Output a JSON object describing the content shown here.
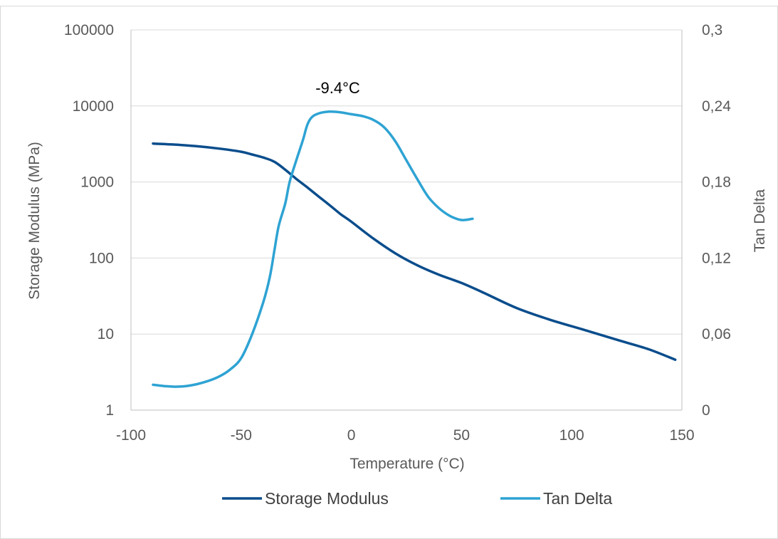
{
  "chart_data": {
    "type": "line",
    "x_axis": {
      "title": "Temperature  (°C)",
      "range": [
        -100,
        150
      ],
      "ticks": [
        -100,
        -50,
        0,
        50,
        100,
        150
      ],
      "tick_labels": [
        "-100",
        "-50",
        "0",
        "50",
        "100",
        "150"
      ]
    },
    "y_axis_left": {
      "title": "Storage  Modulus (MPa)",
      "scale": "log",
      "range": [
        1,
        100000
      ],
      "ticks": [
        1,
        10,
        100,
        1000,
        10000,
        100000
      ],
      "tick_labels": [
        "1",
        "10",
        "100",
        "1000",
        "10000",
        "100000"
      ]
    },
    "y_axis_right": {
      "title": "Tan Delta",
      "scale": "linear",
      "range": [
        0,
        0.3
      ],
      "ticks": [
        0,
        0.06,
        0.12,
        0.18,
        0.24,
        0.3
      ],
      "tick_labels": [
        "0",
        "0,06",
        "0,12",
        "0,18",
        "0,24",
        "0,3"
      ]
    },
    "grid": "horizontal",
    "legend_position": "bottom",
    "annotations": [
      {
        "text": "-9.4°C",
        "x": -9.4,
        "axis": "right",
        "y": 0.25
      }
    ],
    "series": [
      {
        "name": "Storage Modulus",
        "axis": "left",
        "color": "#0a4d8c",
        "x": [
          -90,
          -80,
          -70,
          -60,
          -50,
          -45,
          -40,
          -35,
          -30,
          -25,
          -20,
          -15,
          -10,
          -5,
          0,
          10,
          20,
          30,
          40,
          50,
          60,
          75,
          90,
          105,
          120,
          135,
          147
        ],
        "y": [
          3200,
          3100,
          2950,
          2750,
          2500,
          2300,
          2100,
          1850,
          1450,
          1100,
          850,
          650,
          500,
          380,
          300,
          180,
          115,
          80,
          60,
          47,
          35,
          22,
          15.5,
          11.5,
          8.5,
          6.3,
          4.6
        ]
      },
      {
        "name": "Tan Delta",
        "axis": "right",
        "color": "#2ea3d3",
        "x": [
          -90,
          -85,
          -80,
          -75,
          -70,
          -65,
          -60,
          -55,
          -50,
          -45,
          -40,
          -37,
          -35,
          -33,
          -30,
          -28,
          -25,
          -22,
          -20,
          -18,
          -15,
          -10,
          -5,
          0,
          5,
          10,
          15,
          20,
          25,
          30,
          35,
          40,
          45,
          50,
          55
        ],
        "y": [
          0.02,
          0.019,
          0.0185,
          0.019,
          0.0205,
          0.023,
          0.0265,
          0.032,
          0.041,
          0.06,
          0.085,
          0.105,
          0.125,
          0.145,
          0.163,
          0.18,
          0.197,
          0.213,
          0.225,
          0.231,
          0.234,
          0.2355,
          0.235,
          0.2335,
          0.232,
          0.229,
          0.223,
          0.212,
          0.197,
          0.182,
          0.168,
          0.159,
          0.153,
          0.15,
          0.151
        ]
      }
    ]
  }
}
